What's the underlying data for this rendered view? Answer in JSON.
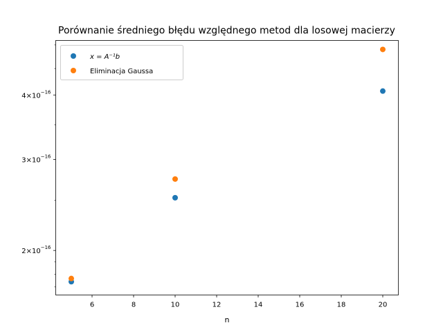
{
  "chart_data": {
    "type": "scatter",
    "title": "Porównanie średniego błędu względnego metod dla losowej macierzy",
    "xlabel": "n",
    "ylabel": "",
    "yscale": "log",
    "xlim": [
      4.25,
      20.75
    ],
    "ylim": [
      1.64e-16,
      5.1e-16
    ],
    "xticks": [
      6,
      8,
      10,
      12,
      14,
      16,
      18,
      20
    ],
    "xtick_labels": [
      "6",
      "8",
      "10",
      "12",
      "14",
      "16",
      "18",
      "20"
    ],
    "yticks": [
      {
        "value": 2e-16,
        "mant": "2",
        "exp": "−16"
      },
      {
        "value": 3e-16,
        "mant": "3",
        "exp": "−16"
      },
      {
        "value": 4e-16,
        "mant": "4",
        "exp": "−16"
      }
    ],
    "legend_position": "upper-left",
    "series": [
      {
        "name": "x = A⁻¹b",
        "color": "#1f77b4",
        "x": [
          5,
          10,
          20
        ],
        "y": [
          1.74e-16,
          2.53e-16,
          4.07e-16
        ]
      },
      {
        "name": "Eliminacja Gaussa",
        "color": "#ff7f0e",
        "x": [
          5,
          10,
          20
        ],
        "y": [
          1.765e-16,
          2.75e-16,
          4.9e-16
        ]
      }
    ]
  }
}
